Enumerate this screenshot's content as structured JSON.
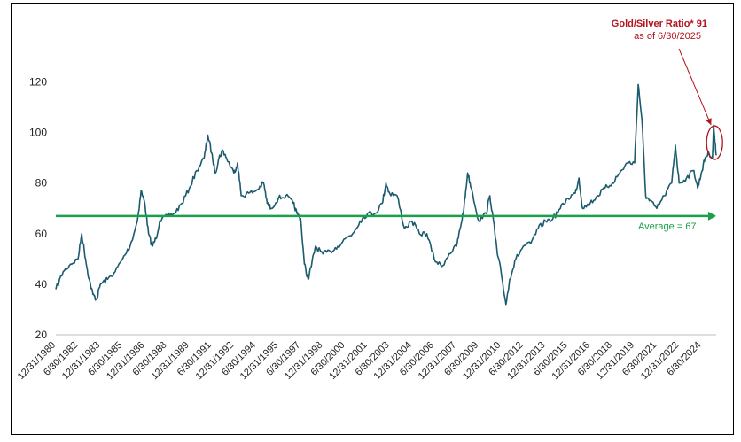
{
  "chart_data": {
    "type": "line",
    "title": "",
    "xlabel": "",
    "ylabel": "",
    "ylim": [
      20,
      130
    ],
    "yticks": [
      20,
      40,
      60,
      80,
      100,
      120
    ],
    "xlim": [
      "1980-12-31",
      "2025-06-30"
    ],
    "xtick_labels": [
      "12/31/1980",
      "6/30/1982",
      "12/31/1983",
      "6/30/1985",
      "12/31/1986",
      "6/30/1988",
      "12/31/1989",
      "6/30/1991",
      "12/31/1992",
      "6/30/1994",
      "12/31/1995",
      "6/30/1997",
      "12/31/1998",
      "6/30/2000",
      "12/31/2001",
      "6/30/2003",
      "12/31/2004",
      "6/30/2006",
      "12/31/2007",
      "6/30/2009",
      "12/31/2010",
      "6/30/2012",
      "12/31/2013",
      "6/30/2015",
      "12/31/2016",
      "6/30/2018",
      "12/31/2019",
      "6/30/2021",
      "12/31/2022",
      "6/30/2024"
    ],
    "series": [
      {
        "color": "#1c5a6e",
        "points": [
          [
            "1980-12-31",
            38
          ],
          [
            "1981-06-30",
            45
          ],
          [
            "1981-12-31",
            48
          ],
          [
            "1982-06-30",
            50
          ],
          [
            "1982-09-30",
            60
          ],
          [
            "1982-12-31",
            50
          ],
          [
            "1983-03-31",
            42
          ],
          [
            "1983-06-30",
            36
          ],
          [
            "1983-09-30",
            34
          ],
          [
            "1983-12-31",
            40
          ],
          [
            "1984-06-30",
            42
          ],
          [
            "1984-12-31",
            45
          ],
          [
            "1985-06-30",
            50
          ],
          [
            "1985-12-31",
            55
          ],
          [
            "1986-06-30",
            65
          ],
          [
            "1986-09-30",
            77
          ],
          [
            "1986-12-31",
            72
          ],
          [
            "1987-03-31",
            60
          ],
          [
            "1987-06-30",
            55
          ],
          [
            "1987-09-30",
            58
          ],
          [
            "1987-12-31",
            65
          ],
          [
            "1988-06-30",
            67
          ],
          [
            "1988-12-31",
            68
          ],
          [
            "1989-06-30",
            72
          ],
          [
            "1989-12-31",
            78
          ],
          [
            "1990-06-30",
            85
          ],
          [
            "1990-12-31",
            90
          ],
          [
            "1991-03-31",
            99
          ],
          [
            "1991-06-30",
            92
          ],
          [
            "1991-09-30",
            84
          ],
          [
            "1991-12-31",
            90
          ],
          [
            "1992-03-31",
            93
          ],
          [
            "1992-06-30",
            90
          ],
          [
            "1992-12-31",
            84
          ],
          [
            "1993-03-31",
            88
          ],
          [
            "1993-06-30",
            75
          ],
          [
            "1993-12-31",
            76
          ],
          [
            "1994-06-30",
            77
          ],
          [
            "1994-12-31",
            80
          ],
          [
            "1995-03-31",
            72
          ],
          [
            "1995-06-30",
            70
          ],
          [
            "1995-12-31",
            74
          ],
          [
            "1996-06-30",
            75
          ],
          [
            "1996-12-31",
            72
          ],
          [
            "1997-03-31",
            68
          ],
          [
            "1997-06-30",
            66
          ],
          [
            "1997-09-30",
            48
          ],
          [
            "1997-12-31",
            42
          ],
          [
            "1998-03-31",
            48
          ],
          [
            "1998-06-30",
            55
          ],
          [
            "1998-12-31",
            52
          ],
          [
            "1999-06-30",
            53
          ],
          [
            "1999-12-31",
            55
          ],
          [
            "2000-06-30",
            58
          ],
          [
            "2000-12-31",
            60
          ],
          [
            "2001-06-30",
            65
          ],
          [
            "2001-12-31",
            68
          ],
          [
            "2002-06-30",
            68
          ],
          [
            "2002-12-31",
            72
          ],
          [
            "2003-03-31",
            80
          ],
          [
            "2003-06-30",
            76
          ],
          [
            "2003-12-31",
            75
          ],
          [
            "2004-06-30",
            62
          ],
          [
            "2004-12-31",
            65
          ],
          [
            "2005-06-30",
            60
          ],
          [
            "2005-12-31",
            60
          ],
          [
            "2006-06-30",
            50
          ],
          [
            "2006-12-31",
            47
          ],
          [
            "2007-06-30",
            52
          ],
          [
            "2007-12-31",
            55
          ],
          [
            "2008-03-31",
            62
          ],
          [
            "2008-06-30",
            70
          ],
          [
            "2008-09-30",
            84
          ],
          [
            "2008-12-31",
            78
          ],
          [
            "2009-06-30",
            65
          ],
          [
            "2009-12-31",
            68
          ],
          [
            "2010-03-31",
            75
          ],
          [
            "2010-06-30",
            65
          ],
          [
            "2010-09-30",
            52
          ],
          [
            "2010-12-31",
            45
          ],
          [
            "2011-04-30",
            32
          ],
          [
            "2011-07-31",
            42
          ],
          [
            "2011-12-31",
            50
          ],
          [
            "2012-06-30",
            55
          ],
          [
            "2012-12-31",
            56
          ],
          [
            "2013-06-30",
            62
          ],
          [
            "2013-12-31",
            65
          ],
          [
            "2014-06-30",
            66
          ],
          [
            "2014-12-31",
            70
          ],
          [
            "2015-06-30",
            74
          ],
          [
            "2015-12-31",
            76
          ],
          [
            "2016-03-31",
            82
          ],
          [
            "2016-06-30",
            70
          ],
          [
            "2016-12-31",
            72
          ],
          [
            "2017-06-30",
            75
          ],
          [
            "2017-12-31",
            78
          ],
          [
            "2018-06-30",
            80
          ],
          [
            "2018-12-31",
            84
          ],
          [
            "2019-06-30",
            88
          ],
          [
            "2019-12-31",
            88
          ],
          [
            "2020-03-31",
            119
          ],
          [
            "2020-06-30",
            105
          ],
          [
            "2020-09-30",
            75
          ],
          [
            "2020-12-31",
            73
          ],
          [
            "2021-06-30",
            70
          ],
          [
            "2021-12-31",
            75
          ],
          [
            "2022-06-30",
            80
          ],
          [
            "2022-09-30",
            95
          ],
          [
            "2022-12-31",
            80
          ],
          [
            "2023-06-30",
            82
          ],
          [
            "2023-12-31",
            85
          ],
          [
            "2024-03-31",
            78
          ],
          [
            "2024-06-30",
            84
          ],
          [
            "2024-09-30",
            90
          ],
          [
            "2024-12-31",
            92
          ],
          [
            "2025-03-31",
            90
          ],
          [
            "2025-04-30",
            103
          ],
          [
            "2025-06-30",
            91
          ]
        ]
      }
    ],
    "reference_line": {
      "value": 67,
      "label": "Average = 67",
      "color": "#1aa04a"
    },
    "annotation": {
      "title": "Gold/Silver Ratio* 91",
      "subtitle": "as of 6/30/2025",
      "color": "#b3131b"
    },
    "grid": false
  }
}
